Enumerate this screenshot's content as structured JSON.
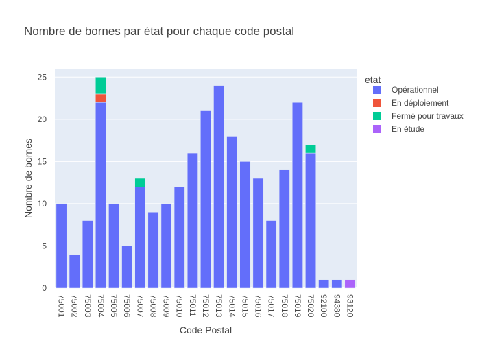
{
  "chart_data": {
    "type": "bar",
    "stacked": true,
    "title": "Nombre de bornes par état pour chaque code postal",
    "xlabel": "Code Postal",
    "ylabel": "Nombre de bornes",
    "ylim": [
      0,
      26
    ],
    "yticks": [
      0,
      5,
      10,
      15,
      20,
      25
    ],
    "grid": true,
    "legend_title": "etat",
    "legend_position": "top-right",
    "categories": [
      "75001",
      "75002",
      "75003",
      "75004",
      "75005",
      "75006",
      "75007",
      "75008",
      "75009",
      "75010",
      "75011",
      "75012",
      "75013",
      "75014",
      "75015",
      "75016",
      "75017",
      "75018",
      "75019",
      "75020",
      "92100",
      "94380",
      "93120"
    ],
    "series": [
      {
        "name": "Opérationnel",
        "color": "#636efa",
        "values": [
          10,
          4,
          8,
          22,
          10,
          5,
          12,
          9,
          10,
          12,
          16,
          21,
          24,
          18,
          15,
          13,
          8,
          14,
          22,
          16,
          1,
          1,
          0
        ]
      },
      {
        "name": "En déploiement",
        "color": "#ef553b",
        "values": [
          0,
          0,
          0,
          1,
          0,
          0,
          0,
          0,
          0,
          0,
          0,
          0,
          0,
          0,
          0,
          0,
          0,
          0,
          0,
          0,
          0,
          0,
          0
        ]
      },
      {
        "name": "Fermé pour travaux",
        "color": "#00cc96",
        "values": [
          0,
          0,
          0,
          2,
          0,
          0,
          1,
          0,
          0,
          0,
          0,
          0,
          0,
          0,
          0,
          0,
          0,
          0,
          0,
          1,
          0,
          0,
          0
        ]
      },
      {
        "name": "En étude",
        "color": "#ab63fa",
        "values": [
          0,
          0,
          0,
          0,
          0,
          0,
          0,
          0,
          0,
          0,
          0,
          0,
          0,
          0,
          0,
          0,
          0,
          0,
          0,
          0,
          0,
          0,
          1
        ]
      }
    ]
  }
}
